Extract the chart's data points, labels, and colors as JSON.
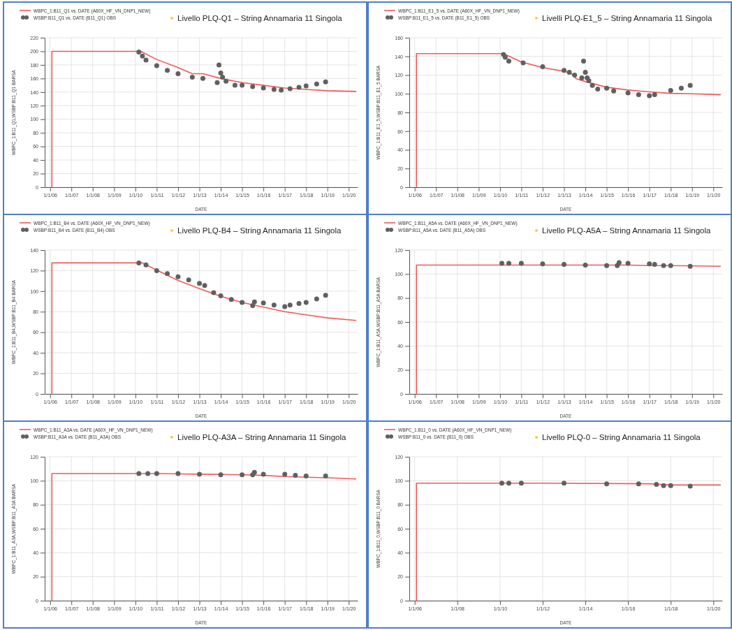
{
  "chart_data": [
    {
      "type": "line",
      "title": "Livello PLQ-Q1 – String Annamaria 11 Singola",
      "xlabel": "DATE",
      "ylabel": "WBPC_1:B11_Q1,WSBP:B11_Q1  BARSA",
      "legend": "top left",
      "grid": true,
      "xlim": [
        "2005-10-01",
        "2020-06-01"
      ],
      "ylim": [
        0,
        220
      ],
      "yticks": [
        0,
        20,
        40,
        60,
        80,
        100,
        120,
        140,
        160,
        180,
        200,
        220
      ],
      "xticks": [
        {
          "value": "2006-01-01",
          "label": "1/1/06"
        },
        {
          "value": "2007-01-01",
          "label": "1/1/07"
        },
        {
          "value": "2008-01-01",
          "label": "1/1/08"
        },
        {
          "value": "2009-01-01",
          "label": "1/1/09"
        },
        {
          "value": "2010-01-01",
          "label": "1/1/10"
        },
        {
          "value": "2011-01-01",
          "label": "1/1/11"
        },
        {
          "value": "2012-01-01",
          "label": "1/1/12"
        },
        {
          "value": "2013-01-01",
          "label": "1/1/13"
        },
        {
          "value": "2014-01-01",
          "label": "1/1/14"
        },
        {
          "value": "2015-01-01",
          "label": "1/1/15"
        },
        {
          "value": "2016-01-01",
          "label": "1/1/16"
        },
        {
          "value": "2017-01-01",
          "label": "1/1/17"
        },
        {
          "value": "2018-01-01",
          "label": "1/1/18"
        },
        {
          "value": "2019-01-01",
          "label": "1/1/19"
        },
        {
          "value": "2020-01-01",
          "label": "1/1/20"
        }
      ],
      "series": [
        {
          "name": "WBPC_1:B11_Q1 vs. DATE (A60X_HF_VN_DNP1_NEW)",
          "color": "#f05a5a",
          "x": [
            "2006-02-01",
            "2006-02-01",
            "2010-04-01",
            "2011-01-01",
            "2012-01-01",
            "2012-09-01",
            "2013-03-01",
            "2014-01-01",
            "2015-01-01",
            "2016-01-01",
            "2017-01-01",
            "2018-01-01",
            "2019-01-01",
            "2020-05-01"
          ],
          "values": [
            0,
            200,
            200,
            188,
            176,
            167,
            167,
            160,
            154,
            150,
            146,
            144,
            142,
            141
          ]
        },
        {
          "type": "scatter",
          "marker": "circle",
          "name": "WSBP:B11_Q1 vs. DATE (B11_Q1) OBS",
          "color": "#606060",
          "x": [
            "2010-03-01",
            "2010-05-01",
            "2010-07-01",
            "2011-01-01",
            "2011-07-01",
            "2012-01-01",
            "2012-09-01",
            "2013-03-01",
            "2013-11-01",
            "2013-12-01",
            "2014-01-01",
            "2014-02-01",
            "2014-04-01",
            "2014-09-01",
            "2015-01-01",
            "2015-07-01",
            "2016-01-01",
            "2016-07-01",
            "2016-11-01",
            "2017-04-01",
            "2017-09-01",
            "2018-01-01",
            "2018-07-01",
            "2018-12-01"
          ],
          "values": [
            199,
            193,
            187,
            179,
            172,
            167,
            162,
            160,
            154,
            180,
            168,
            162,
            156,
            150,
            150,
            148,
            146,
            144,
            143,
            145,
            147,
            149,
            152,
            155
          ]
        }
      ]
    },
    {
      "type": "line",
      "title": "Livelli PLQ-E1_5 – String Annamaria 11 Singola",
      "xlabel": "DATE",
      "ylabel": "WBPC_1:B11_E1_5,WSBP:B11_E1_5  BARSA",
      "legend": "top left",
      "grid": true,
      "xlim": [
        "2005-10-01",
        "2020-06-01"
      ],
      "ylim": [
        0,
        160
      ],
      "yticks": [
        0,
        20,
        40,
        60,
        80,
        100,
        120,
        140,
        160
      ],
      "xticks": [
        {
          "value": "2006-01-01",
          "label": "1/1/06"
        },
        {
          "value": "2007-01-01",
          "label": "1/1/07"
        },
        {
          "value": "2008-01-01",
          "label": "1/1/08"
        },
        {
          "value": "2009-01-01",
          "label": "1/1/09"
        },
        {
          "value": "2010-01-01",
          "label": "1/1/10"
        },
        {
          "value": "2011-01-01",
          "label": "1/1/11"
        },
        {
          "value": "2012-01-01",
          "label": "1/1/12"
        },
        {
          "value": "2013-01-01",
          "label": "1/1/13"
        },
        {
          "value": "2014-01-01",
          "label": "1/1/14"
        },
        {
          "value": "2015-01-01",
          "label": "1/1/15"
        },
        {
          "value": "2016-01-01",
          "label": "1/1/16"
        },
        {
          "value": "2017-01-01",
          "label": "1/1/17"
        },
        {
          "value": "2018-01-01",
          "label": "1/1/18"
        },
        {
          "value": "2019-01-01",
          "label": "1/1/19"
        },
        {
          "value": "2020-01-01",
          "label": "1/1/20"
        }
      ],
      "series": [
        {
          "name": "WBPC_1:B11_E1_5 vs. DATE (A60X_HF_VN_DNP1_NEW)",
          "color": "#f05a5a",
          "x": [
            "2006-02-01",
            "2006-02-01",
            "2010-03-01",
            "2011-01-01",
            "2012-01-01",
            "2013-01-01",
            "2013-05-01",
            "2013-08-01",
            "2014-01-01",
            "2015-01-01",
            "2016-01-01",
            "2017-01-01",
            "2018-01-01",
            "2019-01-01",
            "2020-05-01"
          ],
          "values": [
            0,
            143,
            143,
            134,
            128,
            124,
            122,
            116,
            113,
            107,
            104,
            102,
            100.5,
            100,
            99
          ]
        },
        {
          "type": "scatter",
          "marker": "circle",
          "name": "WSBP:B11_E1_5 vs. DATE (B11_E1_5) OBS",
          "color": "#606060",
          "x": [
            "2010-03-01",
            "2010-04-01",
            "2010-06-01",
            "2011-02-01",
            "2012-01-01",
            "2013-01-01",
            "2013-04-01",
            "2013-07-01",
            "2013-11-01",
            "2013-12-01",
            "2014-01-01",
            "2014-02-01",
            "2014-03-01",
            "2014-05-01",
            "2014-08-01",
            "2015-01-01",
            "2015-05-01",
            "2016-01-01",
            "2016-07-01",
            "2017-01-01",
            "2017-04-01",
            "2018-01-01",
            "2018-07-01",
            "2018-12-01"
          ],
          "values": [
            142,
            139,
            135,
            133,
            129,
            125,
            123,
            120,
            117,
            135,
            123,
            117,
            114,
            109,
            105,
            106,
            103,
            101,
            99,
            98,
            99,
            103.5,
            106,
            109
          ]
        }
      ]
    },
    {
      "type": "line",
      "title": "Livello PLQ-B4 – String Annamaria 11 Singola",
      "xlabel": "DATE",
      "ylabel": "WBPC_1:B11_B4,WSBP:B11_B4  BARSA",
      "legend": "top left",
      "grid": true,
      "xlim": [
        "2005-10-01",
        "2020-06-01"
      ],
      "ylim": [
        0,
        140
      ],
      "yticks": [
        0,
        20,
        40,
        60,
        80,
        100,
        120,
        140
      ],
      "xticks": [
        {
          "value": "2006-01-01",
          "label": "1/1/06"
        },
        {
          "value": "2007-01-01",
          "label": "1/1/07"
        },
        {
          "value": "2008-01-01",
          "label": "1/1/08"
        },
        {
          "value": "2009-01-01",
          "label": "1/1/09"
        },
        {
          "value": "2010-01-01",
          "label": "1/1/10"
        },
        {
          "value": "2011-01-01",
          "label": "1/1/11"
        },
        {
          "value": "2012-01-01",
          "label": "1/1/12"
        },
        {
          "value": "2013-01-01",
          "label": "1/1/13"
        },
        {
          "value": "2014-01-01",
          "label": "1/1/14"
        },
        {
          "value": "2015-01-01",
          "label": "1/1/15"
        },
        {
          "value": "2016-01-01",
          "label": "1/1/16"
        },
        {
          "value": "2017-01-01",
          "label": "1/1/17"
        },
        {
          "value": "2018-01-01",
          "label": "1/1/18"
        },
        {
          "value": "2019-01-01",
          "label": "1/1/19"
        },
        {
          "value": "2020-01-01",
          "label": "1/1/20"
        }
      ],
      "series": [
        {
          "name": "WBPC_1:B11_B4 vs. DATE (A60X_HF_VN_DNP1_NEW)",
          "color": "#f05a5a",
          "x": [
            "2006-02-01",
            "2006-02-01",
            "2010-05-01",
            "2011-01-01",
            "2012-01-01",
            "2013-01-01",
            "2014-01-01",
            "2015-01-01",
            "2016-01-01",
            "2017-01-01",
            "2018-01-01",
            "2019-01-01",
            "2020-05-01"
          ],
          "values": [
            0,
            127.5,
            127.5,
            120.5,
            110.5,
            102.5,
            95,
            89,
            84.5,
            80,
            77,
            74,
            71.5
          ]
        },
        {
          "type": "scatter",
          "marker": "circle",
          "name": "WSBP:B11_B4 vs. DATE (B11_B4) OBS",
          "color": "#606060",
          "x": [
            "2010-03-01",
            "2010-07-01",
            "2011-01-01",
            "2011-07-01",
            "2012-01-01",
            "2012-07-01",
            "2013-01-01",
            "2013-04-01",
            "2013-09-01",
            "2014-01-01",
            "2014-07-01",
            "2015-01-01",
            "2015-07-01",
            "2015-08-01",
            "2016-01-01",
            "2016-07-01",
            "2017-01-01",
            "2017-04-01",
            "2017-09-01",
            "2018-01-01",
            "2018-07-01",
            "2018-12-01"
          ],
          "values": [
            127.5,
            125.5,
            120,
            117,
            114,
            111,
            107.5,
            105.5,
            98.5,
            95.5,
            92,
            89,
            86,
            89.5,
            88.5,
            86.5,
            85,
            86.5,
            88,
            89,
            92.5,
            96
          ]
        }
      ]
    },
    {
      "type": "line",
      "title": "Livello PLQ-A5A – String Annamaria 11 Singola",
      "xlabel": "DATE",
      "ylabel": "WBPC_1:B11_A5A,WSBP:B11_A5A  BARSA",
      "legend": "top left",
      "grid": true,
      "xlim": [
        "2005-10-01",
        "2020-06-01"
      ],
      "ylim": [
        0,
        120
      ],
      "yticks": [
        0,
        20,
        40,
        60,
        80,
        100,
        120
      ],
      "xticks": [
        {
          "value": "2006-01-01",
          "label": "1/1/06"
        },
        {
          "value": "2007-01-01",
          "label": "1/1/07"
        },
        {
          "value": "2008-01-01",
          "label": "1/1/08"
        },
        {
          "value": "2009-01-01",
          "label": "1/1/09"
        },
        {
          "value": "2010-01-01",
          "label": "1/1/10"
        },
        {
          "value": "2011-01-01",
          "label": "1/1/11"
        },
        {
          "value": "2012-01-01",
          "label": "1/1/12"
        },
        {
          "value": "2013-01-01",
          "label": "1/1/13"
        },
        {
          "value": "2014-01-01",
          "label": "1/1/14"
        },
        {
          "value": "2015-01-01",
          "label": "1/1/15"
        },
        {
          "value": "2016-01-01",
          "label": "1/1/16"
        },
        {
          "value": "2017-01-01",
          "label": "1/1/17"
        },
        {
          "value": "2018-01-01",
          "label": "1/1/18"
        },
        {
          "value": "2019-01-01",
          "label": "1/1/19"
        },
        {
          "value": "2020-01-01",
          "label": "1/1/20"
        }
      ],
      "series": [
        {
          "name": "WBPC_1:B11_A5A vs. DATE (A60X_HF_VN_DNP1_NEW)",
          "color": "#f05a5a",
          "x": [
            "2006-02-01",
            "2006-02-01",
            "2010-01-01",
            "2013-01-01",
            "2016-01-01",
            "2017-01-01",
            "2018-01-01",
            "2020-05-01"
          ],
          "values": [
            0,
            107.5,
            107.5,
            107.5,
            107.5,
            107,
            107,
            106.5
          ]
        },
        {
          "type": "scatter",
          "marker": "circle",
          "name": "WSBP:B11_A5A vs. DATE (B11_A5A) OBS",
          "color": "#606060",
          "x": [
            "2010-02-01",
            "2010-06-01",
            "2011-01-01",
            "2012-01-01",
            "2013-01-01",
            "2014-01-01",
            "2015-01-01",
            "2015-07-01",
            "2015-08-01",
            "2016-01-01",
            "2017-01-01",
            "2017-04-01",
            "2017-09-01",
            "2018-01-01",
            "2018-12-01"
          ],
          "values": [
            109,
            109,
            109,
            108.5,
            108,
            107.5,
            107,
            107,
            109.5,
            109,
            108.5,
            108,
            107,
            107,
            106.5
          ]
        }
      ]
    },
    {
      "type": "line",
      "title": "Livello PLQ-A3A – String Annamaria 11 Singola",
      "xlabel": "DATE",
      "ylabel": "WBPC_1:B11_A3A,WSBP:B11_A3A  BARSA",
      "legend": "top left",
      "grid": true,
      "xlim": [
        "2005-10-01",
        "2020-06-01"
      ],
      "ylim": [
        0,
        120
      ],
      "yticks": [
        0,
        20,
        40,
        60,
        80,
        100,
        120
      ],
      "xticks": [
        {
          "value": "2006-01-01",
          "label": "1/1/06"
        },
        {
          "value": "2007-01-01",
          "label": "1/1/07"
        },
        {
          "value": "2008-01-01",
          "label": "1/1/08"
        },
        {
          "value": "2009-01-01",
          "label": "1/1/09"
        },
        {
          "value": "2010-01-01",
          "label": "1/1/10"
        },
        {
          "value": "2011-01-01",
          "label": "1/1/11"
        },
        {
          "value": "2012-01-01",
          "label": "1/1/12"
        },
        {
          "value": "2013-01-01",
          "label": "1/1/13"
        },
        {
          "value": "2014-01-01",
          "label": "1/1/14"
        },
        {
          "value": "2015-01-01",
          "label": "1/1/15"
        },
        {
          "value": "2016-01-01",
          "label": "1/1/16"
        },
        {
          "value": "2017-01-01",
          "label": "1/1/17"
        },
        {
          "value": "2018-01-01",
          "label": "1/1/18"
        },
        {
          "value": "2019-01-01",
          "label": "1/1/19"
        },
        {
          "value": "2020-01-01",
          "label": "1/1/20"
        }
      ],
      "series": [
        {
          "name": "WBPC_1:B11_A3A vs. DATE (A60X_HF_VN_DNP1_NEW)",
          "color": "#f05a5a",
          "x": [
            "2006-02-01",
            "2006-02-01",
            "2011-01-01",
            "2013-01-01",
            "2015-01-01",
            "2016-01-01",
            "2017-01-01",
            "2018-01-01",
            "2019-01-01",
            "2020-05-01"
          ],
          "values": [
            0,
            106,
            106,
            105.5,
            105,
            104.5,
            103.5,
            103,
            102.5,
            101.5
          ]
        },
        {
          "type": "scatter",
          "marker": "circle",
          "name": "WSBP:B11_A3A vs. DATE (B11_A3A) OBS",
          "color": "#606060",
          "x": [
            "2010-03-01",
            "2010-08-01",
            "2011-01-01",
            "2012-01-01",
            "2013-01-01",
            "2014-01-01",
            "2015-01-01",
            "2015-07-01",
            "2015-08-01",
            "2016-01-01",
            "2017-01-01",
            "2017-07-01",
            "2018-01-01",
            "2018-12-01"
          ],
          "values": [
            106,
            106,
            106,
            106,
            105.5,
            105,
            105,
            105,
            107,
            105.5,
            105.5,
            104.5,
            104,
            104
          ]
        }
      ]
    },
    {
      "type": "line",
      "title": "Livello PLQ-0 – String Annamaria 11 Singola",
      "xlabel": "DATE",
      "ylabel": "WBPC_1:B11_0,WSBP:B11_0  BARSA",
      "legend": "top left",
      "grid": true,
      "xlim": [
        "2005-10-01",
        "2020-06-01"
      ],
      "ylim": [
        0,
        120
      ],
      "yticks": [
        0,
        20,
        40,
        60,
        80,
        100,
        120
      ],
      "xticks": [
        {
          "value": "2006-01-01",
          "label": "1/1/06"
        },
        {
          "value": "2008-01-01",
          "label": "1/1/08"
        },
        {
          "value": "2010-01-01",
          "label": "1/1/10"
        },
        {
          "value": "2012-01-01",
          "label": "1/1/12"
        },
        {
          "value": "2014-01-01",
          "label": "1/1/14"
        },
        {
          "value": "2016-01-01",
          "label": "1/1/16"
        },
        {
          "value": "2018-01-01",
          "label": "1/1/18"
        },
        {
          "value": "2020-01-01",
          "label": "1/1/20"
        }
      ],
      "series": [
        {
          "name": "WBPC_1:B11_0 vs. DATE (A60X_HF_VN_DNP1_NEW)",
          "color": "#f05a5a",
          "x": [
            "2006-02-01",
            "2006-02-01",
            "2012-01-01",
            "2017-01-01",
            "2018-01-01",
            "2020-05-01"
          ],
          "values": [
            0,
            98,
            98,
            97.5,
            96.5,
            96.5
          ]
        },
        {
          "type": "scatter",
          "marker": "circle",
          "name": "WSBP:B11_0 vs. DATE (B11_0) OBS",
          "color": "#606060",
          "x": [
            "2010-02-01",
            "2010-06-01",
            "2011-01-01",
            "2013-01-01",
            "2015-01-01",
            "2016-07-01",
            "2017-05-01",
            "2017-09-01",
            "2018-01-01",
            "2018-12-01"
          ],
          "values": [
            98,
            98,
            98,
            98,
            97.5,
            97.5,
            97,
            96,
            96,
            95.5
          ]
        }
      ]
    }
  ]
}
